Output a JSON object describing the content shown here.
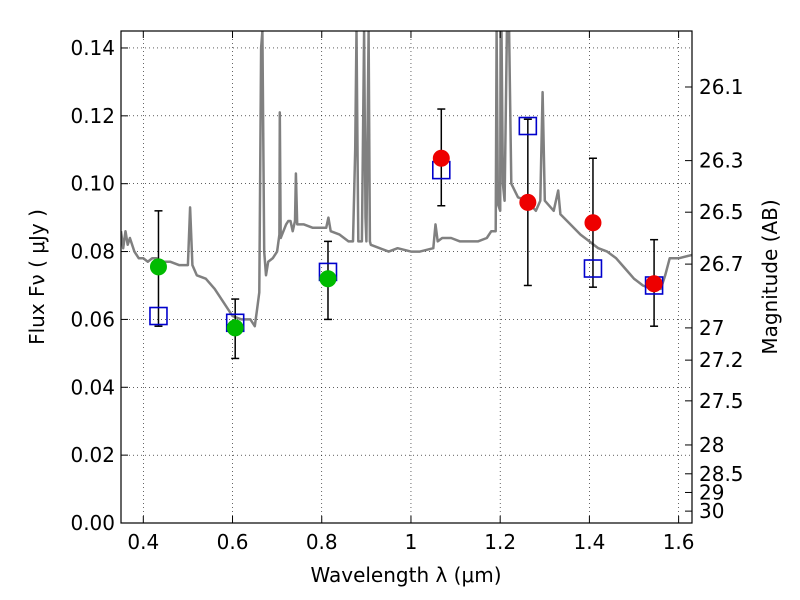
{
  "chart_data": {
    "type": "scatter",
    "xlabel": "Wavelength  λ (μm)",
    "ylabel": "Flux  Fν  ( μJy )",
    "ylabel_right": "Magnitude (AB)",
    "xlim": [
      0.35,
      1.63
    ],
    "ylim": [
      0.0,
      0.145
    ],
    "grid": true,
    "x_ticks": [
      {
        "value": 0.4,
        "label": "0.4"
      },
      {
        "value": 0.6,
        "label": "0.6"
      },
      {
        "value": 0.8,
        "label": "0.8"
      },
      {
        "value": 1.0,
        "label": "1"
      },
      {
        "value": 1.2,
        "label": "1.2"
      },
      {
        "value": 1.4,
        "label": "1.4"
      },
      {
        "value": 1.6,
        "label": "1.6"
      }
    ],
    "y_ticks": [
      {
        "value": 0.0,
        "label": "0.00"
      },
      {
        "value": 0.02,
        "label": "0.02"
      },
      {
        "value": 0.04,
        "label": "0.04"
      },
      {
        "value": 0.06,
        "label": "0.06"
      },
      {
        "value": 0.08,
        "label": "0.08"
      },
      {
        "value": 0.1,
        "label": "0.10"
      },
      {
        "value": 0.12,
        "label": "0.12"
      },
      {
        "value": 0.14,
        "label": "0.14"
      }
    ],
    "mag_ticks": [
      {
        "value": 0.1285,
        "label": "26.1"
      },
      {
        "value": 0.1068,
        "label": "26.3"
      },
      {
        "value": 0.0916,
        "label": "26.5"
      },
      {
        "value": 0.0763,
        "label": "26.7"
      },
      {
        "value": 0.0575,
        "label": "27"
      },
      {
        "value": 0.048,
        "label": "27.2"
      },
      {
        "value": 0.036,
        "label": "27.5"
      },
      {
        "value": 0.023,
        "label": "28"
      },
      {
        "value": 0.0145,
        "label": "28.5"
      },
      {
        "value": 0.009,
        "label": "29"
      },
      {
        "value": 0.0035,
        "label": "30"
      }
    ],
    "colors": {
      "spectrum": "#808080",
      "model_squares": "#0000cc",
      "green_points": "#00bb00",
      "red_points": "#ee0000",
      "errorbars": "#000000"
    },
    "spectrum": [
      [
        0.35,
        0.086
      ],
      [
        0.355,
        0.081
      ],
      [
        0.36,
        0.086
      ],
      [
        0.365,
        0.082
      ],
      [
        0.37,
        0.084
      ],
      [
        0.38,
        0.08
      ],
      [
        0.39,
        0.078
      ],
      [
        0.4,
        0.078
      ],
      [
        0.41,
        0.077
      ],
      [
        0.42,
        0.078
      ],
      [
        0.43,
        0.078
      ],
      [
        0.44,
        0.077
      ],
      [
        0.46,
        0.077
      ],
      [
        0.48,
        0.076
      ],
      [
        0.5,
        0.076
      ],
      [
        0.505,
        0.093
      ],
      [
        0.51,
        0.076
      ],
      [
        0.52,
        0.073
      ],
      [
        0.54,
        0.072
      ],
      [
        0.56,
        0.069
      ],
      [
        0.58,
        0.065
      ],
      [
        0.6,
        0.061
      ],
      [
        0.62,
        0.06
      ],
      [
        0.64,
        0.06
      ],
      [
        0.65,
        0.058
      ],
      [
        0.655,
        0.063
      ],
      [
        0.66,
        0.068
      ],
      [
        0.664,
        0.14
      ],
      [
        0.667,
        0.145
      ],
      [
        0.671,
        0.08
      ],
      [
        0.675,
        0.073
      ],
      [
        0.68,
        0.077
      ],
      [
        0.69,
        0.078
      ],
      [
        0.7,
        0.08
      ],
      [
        0.705,
        0.085
      ],
      [
        0.706,
        0.121
      ],
      [
        0.708,
        0.084
      ],
      [
        0.72,
        0.088
      ],
      [
        0.725,
        0.089
      ],
      [
        0.73,
        0.089
      ],
      [
        0.735,
        0.086
      ],
      [
        0.74,
        0.089
      ],
      [
        0.742,
        0.103
      ],
      [
        0.745,
        0.088
      ],
      [
        0.76,
        0.088
      ],
      [
        0.78,
        0.087
      ],
      [
        0.8,
        0.087
      ],
      [
        0.81,
        0.087
      ],
      [
        0.815,
        0.09
      ],
      [
        0.82,
        0.086
      ],
      [
        0.84,
        0.085
      ],
      [
        0.86,
        0.083
      ],
      [
        0.87,
        0.083
      ],
      [
        0.875,
        0.11
      ],
      [
        0.878,
        0.145
      ],
      [
        0.882,
        0.083
      ],
      [
        0.89,
        0.083
      ],
      [
        0.895,
        0.145
      ],
      [
        0.898,
        0.09
      ],
      [
        0.9,
        0.083
      ],
      [
        0.905,
        0.145
      ],
      [
        0.908,
        0.083
      ],
      [
        0.91,
        0.082
      ],
      [
        0.93,
        0.081
      ],
      [
        0.95,
        0.08
      ],
      [
        0.97,
        0.081
      ],
      [
        1.0,
        0.08
      ],
      [
        1.02,
        0.08
      ],
      [
        1.05,
        0.081
      ],
      [
        1.055,
        0.088
      ],
      [
        1.06,
        0.083
      ],
      [
        1.07,
        0.084
      ],
      [
        1.09,
        0.084
      ],
      [
        1.11,
        0.083
      ],
      [
        1.13,
        0.083
      ],
      [
        1.15,
        0.083
      ],
      [
        1.17,
        0.084
      ],
      [
        1.18,
        0.086
      ],
      [
        1.19,
        0.086
      ],
      [
        1.192,
        0.145
      ],
      [
        1.195,
        0.094
      ],
      [
        1.2,
        0.092
      ],
      [
        1.201,
        0.145
      ],
      [
        1.203,
        0.145
      ],
      [
        1.206,
        0.1
      ],
      [
        1.21,
        0.095
      ],
      [
        1.215,
        0.145
      ],
      [
        1.22,
        0.145
      ],
      [
        1.225,
        0.1
      ],
      [
        1.24,
        0.096
      ],
      [
        1.26,
        0.095
      ],
      [
        1.28,
        0.092
      ],
      [
        1.29,
        0.095
      ],
      [
        1.295,
        0.127
      ],
      [
        1.3,
        0.095
      ],
      [
        1.32,
        0.092
      ],
      [
        1.33,
        0.098
      ],
      [
        1.335,
        0.091
      ],
      [
        1.35,
        0.089
      ],
      [
        1.38,
        0.085
      ],
      [
        1.4,
        0.083
      ],
      [
        1.42,
        0.081
      ],
      [
        1.44,
        0.08
      ],
      [
        1.46,
        0.078
      ],
      [
        1.48,
        0.075
      ],
      [
        1.5,
        0.072
      ],
      [
        1.52,
        0.07
      ],
      [
        1.54,
        0.069
      ],
      [
        1.56,
        0.069
      ],
      [
        1.57,
        0.073
      ],
      [
        1.58,
        0.078
      ],
      [
        1.6,
        0.078
      ],
      [
        1.63,
        0.079
      ]
    ],
    "model_squares": [
      {
        "x": 0.434,
        "y": 0.061
      },
      {
        "x": 0.606,
        "y": 0.059
      },
      {
        "x": 0.814,
        "y": 0.074
      },
      {
        "x": 1.068,
        "y": 0.104
      },
      {
        "x": 1.262,
        "y": 0.117
      },
      {
        "x": 1.408,
        "y": 0.075
      },
      {
        "x": 1.545,
        "y": 0.07
      }
    ],
    "green_points": [
      {
        "x": 0.434,
        "y": 0.0755,
        "err_low": 0.0175,
        "err_high": 0.0165
      },
      {
        "x": 0.606,
        "y": 0.0575,
        "err_low": 0.009,
        "err_high": 0.0085
      },
      {
        "x": 0.814,
        "y": 0.072,
        "err_low": 0.012,
        "err_high": 0.011
      }
    ],
    "red_points": [
      {
        "x": 1.068,
        "y": 0.1075,
        "err_low": 0.014,
        "err_high": 0.0145
      },
      {
        "x": 1.262,
        "y": 0.0945,
        "err_low": 0.0245,
        "err_high": 0.0245
      },
      {
        "x": 1.408,
        "y": 0.0885,
        "err_low": 0.019,
        "err_high": 0.019
      },
      {
        "x": 1.545,
        "y": 0.0705,
        "err_low": 0.0125,
        "err_high": 0.013
      }
    ]
  }
}
